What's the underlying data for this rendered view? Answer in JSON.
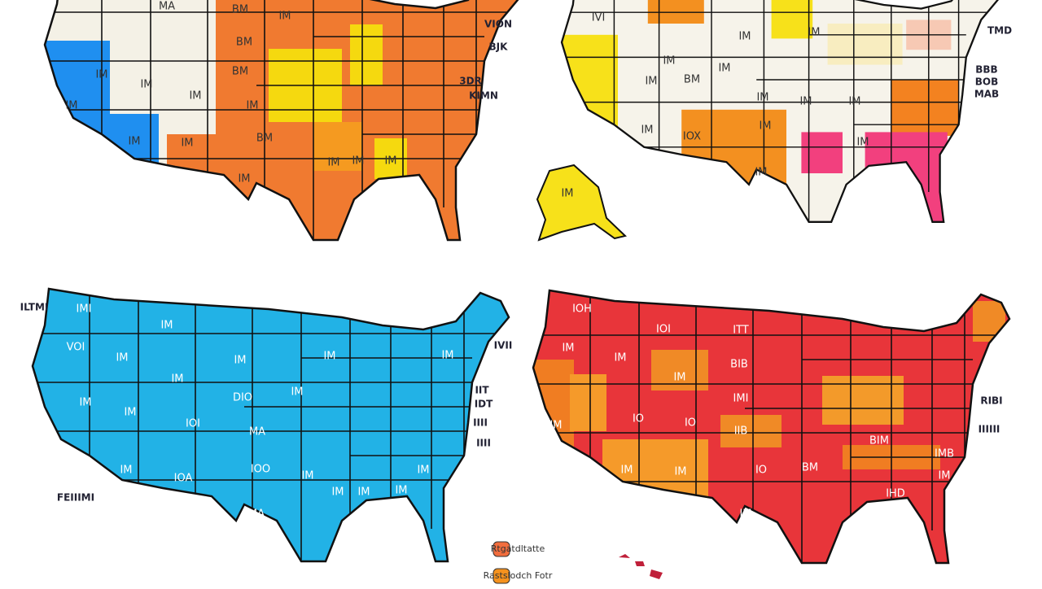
{
  "maps": [
    {
      "labels": [
        "MA",
        "BM",
        "IM",
        "BM",
        "IM",
        "IM",
        "IM",
        "BM",
        "IM",
        "IM",
        "IM",
        "IM",
        "BM",
        "IM",
        "IM",
        "IM",
        "IM"
      ],
      "side_labels": [
        "VION",
        "BJK",
        "3DR",
        "KIMN"
      ]
    },
    {
      "labels": [
        "IVI",
        "IM",
        "IM",
        "IM",
        "IM",
        "IM",
        "BM",
        "IM",
        "IM",
        "IM",
        "IM",
        "IOX",
        "IM",
        "IM",
        "IM",
        "IM"
      ],
      "side_labels": [
        "TMD",
        "BBB",
        "BOB",
        "MAB"
      ]
    },
    {
      "labels": [
        "IMI",
        "IM",
        "VOI",
        "IM",
        "IM",
        "IM",
        "IM",
        "IM",
        "IM",
        "IM",
        "IOI",
        "DIO",
        "IM",
        "MA",
        "IM",
        "IOA",
        "IOO",
        "IMA",
        "IM",
        "IM",
        "IM",
        "IM",
        "IM"
      ],
      "side_labels": [
        "ILTMI",
        "IVII",
        "IIT",
        "IDT",
        "IIII",
        "IIII",
        "FEIIIMI"
      ]
    },
    {
      "labels": [
        "IOH",
        "IOI",
        "ITT",
        "IM",
        "IM",
        "IM",
        "BIB",
        "IMI",
        "IO",
        "IO",
        "IIB",
        "IM",
        "IM",
        "IM",
        "IO",
        "IM",
        "BM",
        "IHD",
        "IM",
        "IMB",
        "BIM"
      ],
      "side_labels": [
        "RIBI",
        "IIIIII"
      ]
    }
  ],
  "legend": [
    {
      "label": "Rtgatdltatte",
      "color": "#f26d3d"
    },
    {
      "label": "Rastslodch Fotr",
      "color": "#f5921e"
    }
  ]
}
